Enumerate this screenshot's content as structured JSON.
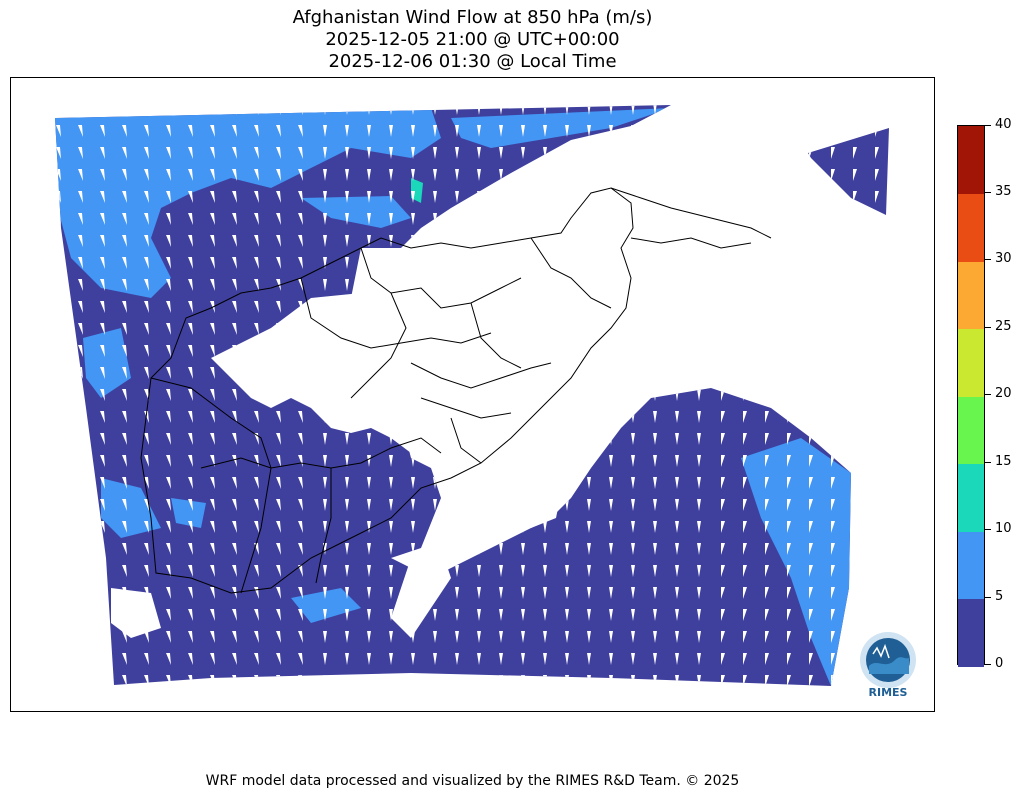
{
  "title": {
    "line1": "Afghanistan Wind Flow at 850 hPa (m/s)",
    "line2": "2025-12-05 21:00 @ UTC+00:00",
    "line3": "2025-12-06 01:30 @ Local Time"
  },
  "colorbar": {
    "ticks": [
      "40",
      "35",
      "30",
      "25",
      "20",
      "15",
      "10",
      "5",
      "0"
    ],
    "levels": [
      0,
      5,
      10,
      15,
      20,
      25,
      30,
      35,
      40
    ],
    "colors": [
      "#3f3f9e",
      "#4396f4",
      "#1ad8b9",
      "#68f54e",
      "#cbe831",
      "#fca934",
      "#e94d14",
      "#a11506"
    ]
  },
  "map": {
    "land_mask_color": "#ffffff",
    "boundary_color": "#000000",
    "arrow_color": "#ffffff",
    "arrow_direction": "mostly northward"
  },
  "logo": {
    "text": "RIMES",
    "icon": "rimes-globe-logo"
  },
  "footer": "WRF model data processed and visualized by the RIMES R&D Team. © 2025"
}
